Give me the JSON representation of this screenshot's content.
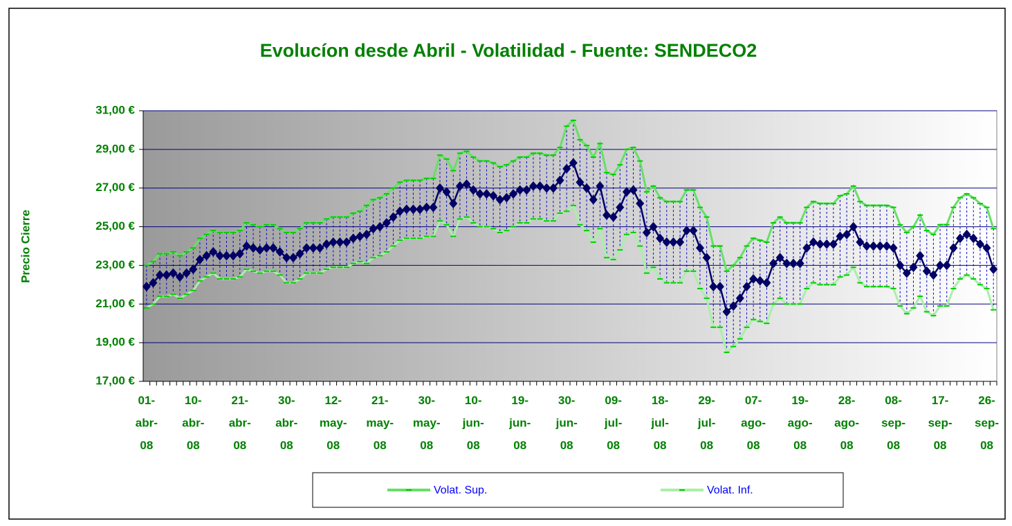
{
  "chart_data": {
    "type": "line",
    "title": "Evolucíon desde Abril - Volatilidad - Fuente: SENDECO2",
    "y_label": "Precio Cierre",
    "categories": [
      "01-abr-08",
      null,
      null,
      null,
      null,
      null,
      null,
      "10-abr-08",
      null,
      null,
      null,
      null,
      null,
      null,
      "21-abr-08",
      null,
      null,
      null,
      null,
      null,
      null,
      "30-abr-08",
      null,
      null,
      null,
      null,
      null,
      null,
      "12-may-08",
      null,
      null,
      null,
      null,
      null,
      null,
      "21-may-08",
      null,
      null,
      null,
      null,
      null,
      null,
      "30-may-08",
      null,
      null,
      null,
      null,
      null,
      null,
      "10-jun-08",
      null,
      null,
      null,
      null,
      null,
      null,
      "19-jun-08",
      null,
      null,
      null,
      null,
      null,
      null,
      "30-jun-08",
      null,
      null,
      null,
      null,
      null,
      null,
      "09-jul-08",
      null,
      null,
      null,
      null,
      null,
      null,
      "18-jul-08",
      null,
      null,
      null,
      null,
      null,
      null,
      "29-jul-08",
      null,
      null,
      null,
      null,
      null,
      null,
      "07-ago-08",
      null,
      null,
      null,
      null,
      null,
      null,
      "19-ago-08",
      null,
      null,
      null,
      null,
      null,
      null,
      "28-ago-08",
      null,
      null,
      null,
      null,
      null,
      null,
      "08-sep-08",
      null,
      null,
      null,
      null,
      null,
      null,
      "17-sep-08",
      null,
      null,
      null,
      null,
      null,
      null,
      "26-sep-08",
      null
    ],
    "series": [
      {
        "color": "#000066",
        "values": [
          21.9,
          22.1,
          22.5,
          22.5,
          22.6,
          22.4,
          22.6,
          22.8,
          23.3,
          23.5,
          23.7,
          23.5,
          23.5,
          23.5,
          23.6,
          24.0,
          23.9,
          23.8,
          23.9,
          23.9,
          23.7,
          23.4,
          23.4,
          23.6,
          23.9,
          23.9,
          23.9,
          24.1,
          24.2,
          24.2,
          24.2,
          24.4,
          24.5,
          24.6,
          24.9,
          25.0,
          25.2,
          25.5,
          25.8,
          25.9,
          25.9,
          25.9,
          26.0,
          26.0,
          27.0,
          26.8,
          26.2,
          27.1,
          27.2,
          26.9,
          26.7,
          26.7,
          26.6,
          26.4,
          26.5,
          26.7,
          26.9,
          26.9,
          27.1,
          27.1,
          27.0,
          27.0,
          27.4,
          28.0,
          28.3,
          27.3,
          27.0,
          26.4,
          27.1,
          25.6,
          25.5,
          26.0,
          26.8,
          26.9,
          26.2,
          24.7,
          25.0,
          24.4,
          24.2,
          24.2,
          24.2,
          24.8,
          24.8,
          23.9,
          23.4,
          21.9,
          21.9,
          20.6,
          20.9,
          21.3,
          21.9,
          22.3,
          22.2,
          22.1,
          23.1,
          23.4,
          23.1,
          23.1,
          23.1,
          23.9,
          24.2,
          24.1,
          24.1,
          24.1,
          24.5,
          24.6,
          25.0,
          24.2,
          24.0,
          24.0,
          24.0,
          24.0,
          23.9,
          23.0,
          22.6,
          22.9,
          23.5,
          22.7,
          22.5,
          23.0,
          23.0,
          23.9,
          24.4,
          24.6,
          24.4,
          24.1,
          23.9,
          22.8
        ]
      },
      {
        "name": "Volat. Sup.",
        "color": "#66e066",
        "values": [
          23.0,
          23.2,
          23.6,
          23.6,
          23.7,
          23.5,
          23.7,
          23.9,
          24.4,
          24.6,
          24.8,
          24.7,
          24.7,
          24.7,
          24.8,
          25.2,
          25.1,
          25.0,
          25.1,
          25.1,
          24.9,
          24.7,
          24.7,
          24.9,
          25.2,
          25.2,
          25.2,
          25.4,
          25.5,
          25.5,
          25.5,
          25.7,
          25.8,
          26.1,
          26.4,
          26.5,
          26.7,
          27.0,
          27.3,
          27.4,
          27.4,
          27.4,
          27.5,
          27.5,
          28.7,
          28.5,
          27.9,
          28.8,
          28.9,
          28.6,
          28.4,
          28.4,
          28.3,
          28.1,
          28.2,
          28.4,
          28.6,
          28.6,
          28.8,
          28.8,
          28.7,
          28.7,
          29.1,
          30.2,
          30.5,
          29.5,
          29.2,
          28.6,
          29.3,
          27.8,
          27.7,
          28.2,
          29.0,
          29.1,
          28.4,
          26.8,
          27.1,
          26.5,
          26.3,
          26.3,
          26.3,
          26.9,
          26.9,
          26.0,
          25.5,
          24.0,
          24.0,
          22.7,
          23.0,
          23.4,
          24.0,
          24.4,
          24.3,
          24.2,
          25.2,
          25.5,
          25.2,
          25.2,
          25.2,
          26.0,
          26.3,
          26.2,
          26.2,
          26.2,
          26.6,
          26.7,
          27.1,
          26.3,
          26.1,
          26.1,
          26.1,
          26.1,
          26.0,
          25.1,
          24.7,
          25.0,
          25.6,
          24.8,
          24.6,
          25.1,
          25.1,
          26.0,
          26.5,
          26.7,
          26.5,
          26.2,
          26.0,
          24.9
        ]
      },
      {
        "name": "Volat. Inf.",
        "color": "#a8f0a8",
        "values": [
          20.8,
          21.0,
          21.4,
          21.4,
          21.5,
          21.3,
          21.5,
          21.7,
          22.2,
          22.4,
          22.6,
          22.3,
          22.3,
          22.3,
          22.4,
          22.8,
          22.7,
          22.6,
          22.7,
          22.7,
          22.5,
          22.1,
          22.1,
          22.3,
          22.6,
          22.6,
          22.6,
          22.8,
          22.9,
          22.9,
          22.9,
          23.1,
          23.2,
          23.1,
          23.4,
          23.5,
          23.7,
          24.0,
          24.3,
          24.4,
          24.4,
          24.4,
          24.5,
          24.5,
          25.3,
          25.1,
          24.5,
          25.4,
          25.5,
          25.2,
          25.0,
          25.0,
          24.9,
          24.7,
          24.8,
          25.0,
          25.2,
          25.2,
          25.4,
          25.4,
          25.3,
          25.3,
          25.7,
          25.8,
          26.1,
          25.1,
          24.8,
          24.2,
          24.9,
          23.4,
          23.3,
          23.8,
          24.6,
          24.7,
          24.0,
          22.6,
          22.9,
          22.3,
          22.1,
          22.1,
          22.1,
          22.7,
          22.7,
          21.8,
          21.3,
          19.8,
          19.8,
          18.5,
          18.8,
          19.2,
          19.8,
          20.2,
          20.1,
          20.0,
          21.0,
          21.3,
          21.0,
          21.0,
          21.0,
          21.8,
          22.1,
          22.0,
          22.0,
          22.0,
          22.4,
          22.5,
          22.9,
          22.1,
          21.9,
          21.9,
          21.9,
          21.9,
          21.8,
          20.9,
          20.5,
          20.8,
          21.4,
          20.6,
          20.4,
          20.9,
          20.9,
          21.8,
          22.3,
          22.5,
          22.3,
          22.0,
          21.8,
          20.7
        ]
      }
    ],
    "ylim": [
      17,
      31
    ],
    "yticks": [
      {
        "value": 17,
        "label": "17,00 €"
      },
      {
        "value": 19,
        "label": "19,00 €"
      },
      {
        "value": 21,
        "label": "21,00 €"
      },
      {
        "value": 23,
        "label": "23,00 €"
      },
      {
        "value": 25,
        "label": "25,00 €"
      },
      {
        "value": 27,
        "label": "27,00 €"
      },
      {
        "value": 29,
        "label": "29,00 €"
      },
      {
        "value": 31,
        "label": "31,00 €"
      }
    ],
    "grid": true,
    "legend": "bottom"
  }
}
